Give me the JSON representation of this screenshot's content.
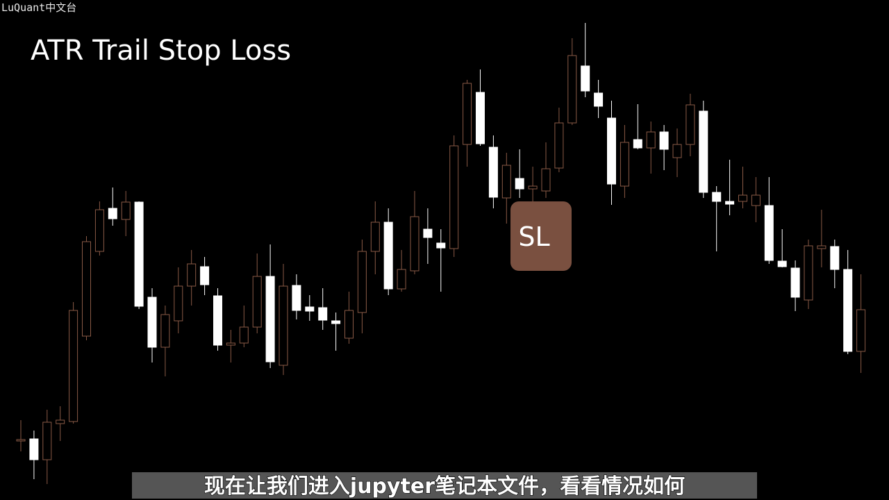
{
  "chart_data": {
    "type": "candlestick",
    "title": "ATR Trail Stop Loss",
    "watermark": "LuQuant中文台",
    "annotation": "SL",
    "subtitle": "现在让我们进入jupyter笔记本文件，看看情况如何",
    "up_color": "#8a5a46",
    "down_color": "#ffffff",
    "annotation_color": "#7a5040",
    "ylim": [
      0,
      720
    ],
    "open": [
      87,
      88,
      58,
      110,
      113,
      236,
      358,
      420,
      404,
      429,
      292,
      220,
      258,
      308,
      336,
      294,
      223,
      226,
      249,
      322,
      194,
      309,
      278,
      277,
      258,
      233,
      270,
      358,
      400,
      304,
      330,
      390,
      370,
      362,
      512,
      587,
      508,
      435,
      463,
      448,
      445,
      478,
      543,
      625,
      586,
      550,
      452,
      519,
      507,
      530,
      493,
      512,
      560,
      443,
      430,
      430,
      424,
      424,
      344,
      334,
      288,
      362,
      365,
      332,
      214
    ],
    "high": [
      115,
      100,
      130,
      135,
      285,
      380,
      430,
      450,
      445,
      430,
      305,
      280,
      335,
      360,
      350,
      305,
      245,
      280,
      355,
      368,
      340,
      325,
      295,
      305,
      270,
      300,
      375,
      430,
      420,
      360,
      445,
      420,
      390,
      525,
      605,
      620,
      525,
      500,
      505,
      480,
      515,
      565,
      665,
      687,
      605,
      575,
      540,
      570,
      545,
      540,
      535,
      585,
      575,
      452,
      490,
      480,
      465,
      465,
      390,
      345,
      375,
      418,
      375,
      360,
      325
    ],
    "low": [
      70,
      30,
      23,
      85,
      110,
      230,
      352,
      395,
      380,
      275,
      198,
      178,
      240,
      280,
      295,
      215,
      198,
      220,
      240,
      190,
      180,
      260,
      258,
      245,
      215,
      225,
      240,
      325,
      295,
      300,
      325,
      340,
      300,
      350,
      480,
      510,
      420,
      398,
      435,
      420,
      435,
      472,
      540,
      580,
      550,
      425,
      435,
      505,
      470,
      475,
      465,
      495,
      435,
      358,
      410,
      420,
      400,
      340,
      335,
      272,
      275,
      335,
      305,
      210,
      183
    ],
    "close": [
      87,
      58,
      112,
      115,
      273,
      372,
      418,
      405,
      429,
      279,
      220,
      267,
      308,
      340,
      310,
      223,
      226,
      249,
      322,
      199,
      308,
      273,
      272,
      259,
      254,
      273,
      358,
      400,
      304,
      332,
      408,
      378,
      363,
      510,
      600,
      513,
      436,
      482,
      448,
      452,
      477,
      543,
      640,
      589,
      567,
      455,
      515,
      507,
      530,
      505,
      512,
      569,
      443,
      430,
      426,
      439,
      439,
      345,
      336,
      292,
      366,
      366,
      332,
      214,
      274
    ]
  }
}
